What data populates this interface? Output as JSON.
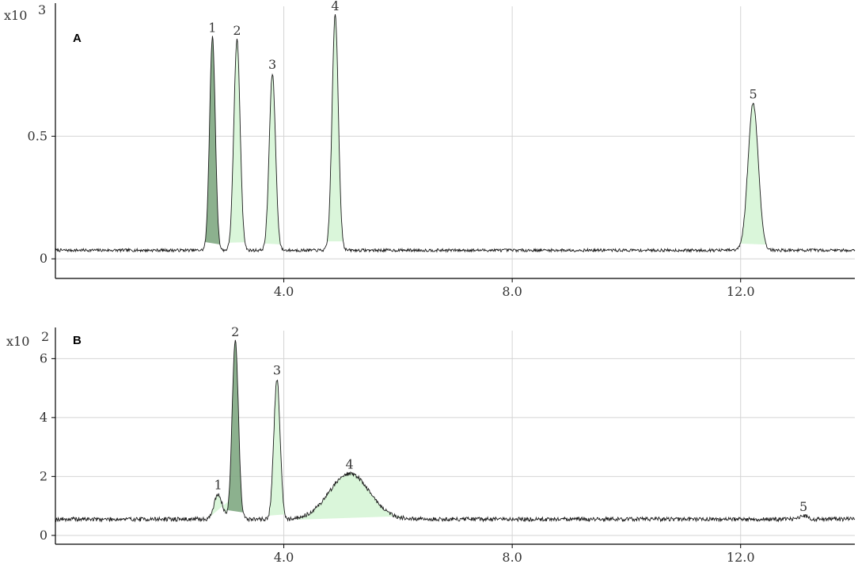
{
  "chart_data": [
    {
      "type": "line",
      "panel": "A",
      "multiplier": "x10",
      "exponent": "3",
      "xlim": [
        0,
        14
      ],
      "ylim": [
        -0.08,
        1.03
      ],
      "xticks": [
        {
          "v": 4,
          "label": "4.0"
        },
        {
          "v": 8,
          "label": "8.0"
        },
        {
          "v": 12,
          "label": "12.0"
        }
      ],
      "yticks": [
        {
          "v": 0,
          "label": "0"
        },
        {
          "v": 0.5,
          "label": "0.5"
        }
      ],
      "baseline": 0.035,
      "noise": 0.006,
      "seed": 7,
      "grid": true,
      "peaks": [
        {
          "label": "1",
          "x": 2.75,
          "height": 0.87,
          "width": 0.05,
          "shade": "dark"
        },
        {
          "label": "2",
          "x": 3.18,
          "height": 0.86,
          "width": 0.055,
          "shade": "light"
        },
        {
          "label": "3",
          "x": 3.8,
          "height": 0.72,
          "width": 0.055,
          "shade": "light"
        },
        {
          "label": "4",
          "x": 4.9,
          "height": 0.96,
          "width": 0.055,
          "shade": "light"
        },
        {
          "label": "5",
          "x": 12.22,
          "height": 0.6,
          "width": 0.09,
          "shade": "light"
        }
      ]
    },
    {
      "type": "line",
      "panel": "B",
      "multiplier": "x10",
      "exponent": "2",
      "xlim": [
        0,
        14
      ],
      "ylim": [
        -0.3,
        6.95
      ],
      "xticks": [
        {
          "v": 4,
          "label": "4.0"
        },
        {
          "v": 8,
          "label": "8.0"
        },
        {
          "v": 12,
          "label": "12.0"
        }
      ],
      "yticks": [
        {
          "v": 0,
          "label": "0"
        },
        {
          "v": 2,
          "label": "2"
        },
        {
          "v": 4,
          "label": "4"
        },
        {
          "v": 6,
          "label": "6"
        }
      ],
      "baseline": 0.55,
      "noise": 0.07,
      "seed": 19,
      "grid": true,
      "peaks": [
        {
          "label": "1",
          "x": 2.85,
          "height": 0.85,
          "width": 0.07,
          "shade": "light"
        },
        {
          "label": "2",
          "x": 3.15,
          "height": 6.05,
          "width": 0.055,
          "shade": "dark"
        },
        {
          "label": "3",
          "x": 3.88,
          "height": 4.75,
          "width": 0.055,
          "shade": "light"
        },
        {
          "label": "4",
          "x": 5.15,
          "height": 1.55,
          "width": 0.35,
          "shade": "light"
        },
        {
          "label": "5",
          "x": 13.1,
          "height": 0.12,
          "width": 0.06,
          "shade": "none"
        }
      ]
    }
  ],
  "colors": {
    "trace": "#1a1a1a",
    "grid": "#d4d4d4",
    "axis": "#000000",
    "fill_light": "#d6f5d6",
    "fill_dark": "#7fa882"
  }
}
